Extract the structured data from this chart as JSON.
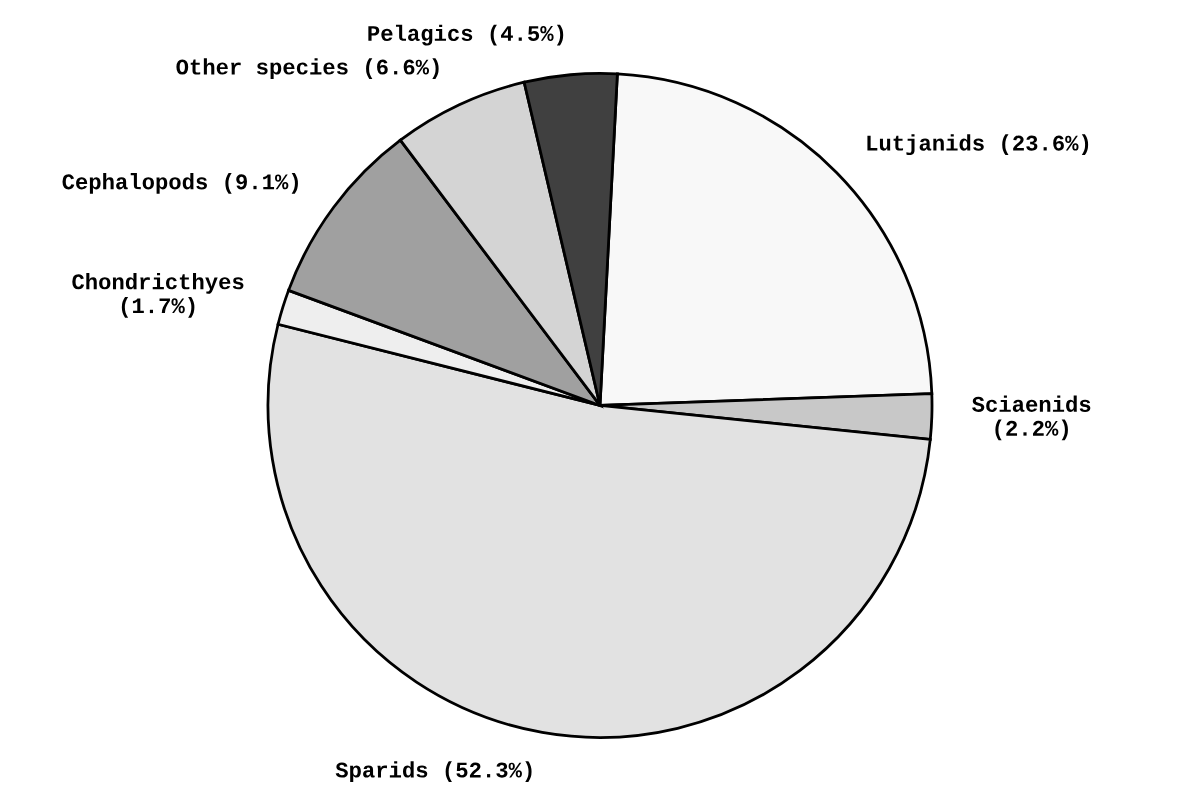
{
  "chart_data": {
    "type": "pie",
    "categories": [
      "Lutjanids",
      "Sciaenids",
      "Sparids",
      "Chondricthyes",
      "Cephalopods",
      "Other species",
      "Pelagics"
    ],
    "values": [
      23.6,
      2.2,
      52.3,
      1.7,
      9.1,
      6.6,
      4.5
    ],
    "value_labels": [
      "(23.6%)",
      "(2.2%)",
      "(52.3%)",
      "(1.7%)",
      "(9.1%)",
      "(6.6%)",
      "(4.5%)"
    ],
    "colors": [
      "#f8f8f8",
      "#c8c8c8",
      "#e2e2e2",
      "#eeeeee",
      "#a0a0a0",
      "#d4d4d4",
      "#404040"
    ]
  }
}
